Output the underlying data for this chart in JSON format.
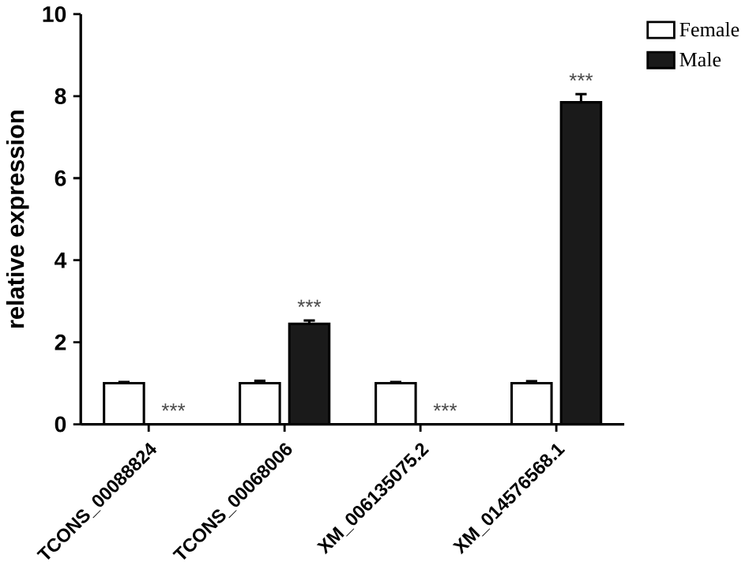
{
  "chart_data": {
    "type": "bar",
    "ylabel": "relative expression",
    "categories": [
      "TCONS_00088824",
      "TCONS_00068006",
      "XM_006135075.2",
      "XM_014576568.1"
    ],
    "series": [
      {
        "name": "Female",
        "color": "#ffffff",
        "values": [
          1.0,
          1.0,
          1.0,
          1.0
        ],
        "errors": [
          0.03,
          0.06,
          0.03,
          0.05
        ]
      },
      {
        "name": "Male",
        "color": "#1a1a1a",
        "values": [
          null,
          2.45,
          null,
          7.85
        ],
        "errors": [
          null,
          0.08,
          null,
          0.2
        ]
      }
    ],
    "ylim": [
      0,
      10
    ],
    "yticks": [
      0,
      2,
      4,
      6,
      8,
      10
    ],
    "grid": false,
    "legend": "top right",
    "annotations": [
      "***",
      "***",
      "***",
      "***"
    ]
  }
}
